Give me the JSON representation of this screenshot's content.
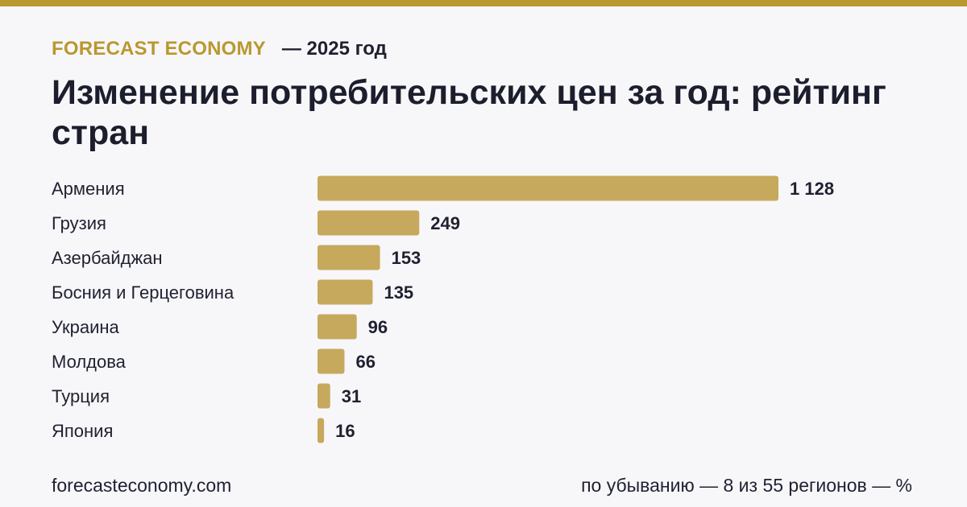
{
  "header": {
    "brand": "FORECAST ECONOMY",
    "period": "— 2025 год",
    "title": "Изменение потребительских цен за год: рейтинг стран"
  },
  "footer": {
    "source": "forecasteconomy.com",
    "note": "по убыванию — 8 из 55 регионов — %"
  },
  "colors": {
    "accent": "#b9982f",
    "bar": "#c6a95c",
    "text": "#1f2130",
    "background": "#f7f7fa"
  },
  "chart_data": {
    "type": "bar",
    "orientation": "horizontal",
    "categories": [
      "Армения",
      "Грузия",
      "Азербайджан",
      "Босния и Герцеговина",
      "Украина",
      "Молдова",
      "Турция",
      "Япония"
    ],
    "values": [
      1128,
      249,
      153,
      135,
      96,
      66,
      31,
      16
    ],
    "value_labels": [
      "1 128",
      "249",
      "153",
      "135",
      "96",
      "66",
      "31",
      "16"
    ],
    "title": "Изменение потребительских цен за год: рейтинг стран",
    "xlabel": "",
    "ylabel": "",
    "xlim": [
      0,
      1128
    ],
    "grid": false,
    "legend": "none"
  }
}
